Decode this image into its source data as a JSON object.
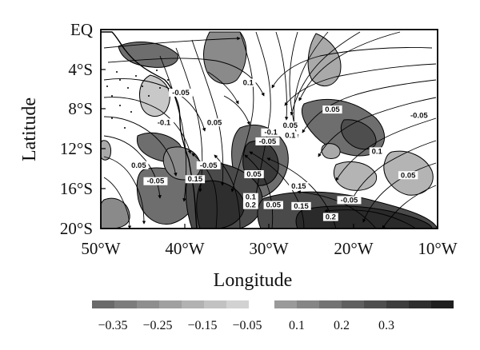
{
  "map": {
    "y_axis_title": "Latitude",
    "x_axis_title": "Longitude",
    "latitude_ticks": [
      "EQ",
      "4°S",
      "8°S",
      "12°S",
      "16°S",
      "20°S"
    ],
    "longitude_ticks": [
      "50°W",
      "40°W",
      "30°W",
      "20°W",
      "10°W"
    ],
    "extent": {
      "lon": [
        -50,
        -10
      ],
      "lat": [
        -20,
        0
      ]
    },
    "contour_labels": [
      {
        "text": "0.1",
        "lon": -32.5,
        "lat": -5.5
      },
      {
        "text": "-0.05",
        "lon": -40.5,
        "lat": -6.5
      },
      {
        "text": "-0.1",
        "lon": -42.5,
        "lat": -9.5
      },
      {
        "text": "0.05",
        "lon": -36.5,
        "lat": -9.5
      },
      {
        "text": "0.05",
        "lon": -22.5,
        "lat": -8.2
      },
      {
        "text": "-0.05",
        "lon": -12.2,
        "lat": -8.8
      },
      {
        "text": "-0.1",
        "lon": -29.8,
        "lat": -10.5
      },
      {
        "text": "0.05",
        "lon": -27.5,
        "lat": -9.8
      },
      {
        "text": "0.1",
        "lon": -27.5,
        "lat": -10.8
      },
      {
        "text": "-0.05",
        "lon": -30.2,
        "lat": -11.4
      },
      {
        "text": "0.1",
        "lon": -17.2,
        "lat": -12.4
      },
      {
        "text": "0.05",
        "lon": -13.5,
        "lat": -14.8
      },
      {
        "text": "0.05",
        "lon": -45.5,
        "lat": -13.8
      },
      {
        "text": "-0.05",
        "lon": -37.2,
        "lat": -13.8
      },
      {
        "text": "0.05",
        "lon": -31.8,
        "lat": -14.7
      },
      {
        "text": "-0.05",
        "lon": -43.5,
        "lat": -15.4
      },
      {
        "text": "0.15",
        "lon": -38.8,
        "lat": -15.2
      },
      {
        "text": "0.15",
        "lon": -26.5,
        "lat": -15.9
      },
      {
        "text": "0.1",
        "lon": -32.2,
        "lat": -17.0
      },
      {
        "text": "0.2",
        "lon": -32.2,
        "lat": -17.8
      },
      {
        "text": "0.05",
        "lon": -29.5,
        "lat": -17.8
      },
      {
        "text": "0.15",
        "lon": -26.2,
        "lat": -17.9
      },
      {
        "text": "-0.05",
        "lon": -20.5,
        "lat": -17.3
      },
      {
        "text": "0.2",
        "lon": -22.7,
        "lat": -19.0
      }
    ],
    "colors": {
      "shade_dark": "#3a3a3a",
      "shade_mid": "#6e6e6e",
      "shade_light": "#a9a9a9",
      "shade_pale": "#c8c8c8",
      "streamline": "#000000",
      "land_outline": "#000000"
    }
  },
  "colorbar": {
    "negative_colors": [
      "#6a6a6a",
      "#7c7c7c",
      "#8e8e8e",
      "#a0a0a0",
      "#b2b2b2",
      "#c2c2c2",
      "#d2d2d2"
    ],
    "positive_colors": [
      "#9a9a9a",
      "#868686",
      "#737373",
      "#606060",
      "#4e4e4e",
      "#3d3d3d",
      "#2e2e2e",
      "#1f1f1f"
    ],
    "labels": [
      "−0.35",
      "−0.25",
      "−0.15",
      "−0.05",
      "0.1",
      "0.2",
      "0.3"
    ]
  }
}
